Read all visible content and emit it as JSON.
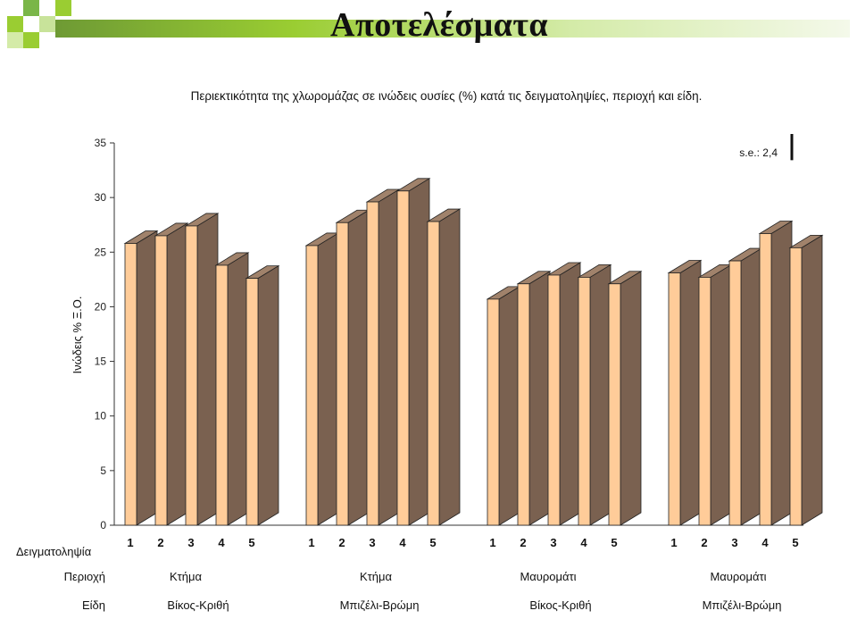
{
  "slide": {
    "title": "Αποτελέσματα",
    "accent_colors": [
      "#7AB648",
      "#9ACD32",
      "#D4EBA8"
    ]
  },
  "chart_data": {
    "type": "bar",
    "title": "Περιεκτικότητα της χλωρομάζας σε ινώδεις ουσίες (%) κατά τις δειγματοληψίες, περιοχή και είδη.",
    "ylabel": "Ινώδεις % Ξ.Ο.",
    "ylim": [
      0,
      35
    ],
    "yticks": [
      0,
      5,
      10,
      15,
      20,
      25,
      30,
      35
    ],
    "se_label": "s.e.: 2,4",
    "se_value": 2.4,
    "row_labels": {
      "sampling": "Δειγματοληψία",
      "region": "Περιοχή",
      "species": "Είδη"
    },
    "groups": [
      {
        "region": "Κτήμα",
        "species": "Βίκος-Κριθή",
        "samplings": [
          "1",
          "2",
          "3",
          "4",
          "5"
        ],
        "values": [
          25.8,
          26.5,
          27.4,
          23.8,
          22.6
        ]
      },
      {
        "region": "Κτήμα",
        "species": "Μπιζέλι-Βρώμη",
        "samplings": [
          "1",
          "2",
          "3",
          "4",
          "5"
        ],
        "values": [
          25.6,
          27.7,
          29.6,
          30.6,
          27.8
        ]
      },
      {
        "region": "Μαυρομάτι",
        "species": "Βίκος-Κριθή",
        "samplings": [
          "1",
          "2",
          "3",
          "4",
          "5"
        ],
        "values": [
          20.7,
          22.1,
          22.9,
          22.7,
          22.1
        ]
      },
      {
        "region": "Μαυρομάτι",
        "species": "Μπιζέλι-Βρώμη",
        "samplings": [
          "1",
          "2",
          "3",
          "4",
          "5"
        ],
        "values": [
          23.1,
          22.7,
          24.2,
          26.7,
          25.4
        ]
      }
    ],
    "colors": {
      "front": "#FFCC99",
      "side": "#7A6150",
      "top": "#A0826B",
      "outline": "#222222"
    },
    "grid": false,
    "legend": "none"
  }
}
